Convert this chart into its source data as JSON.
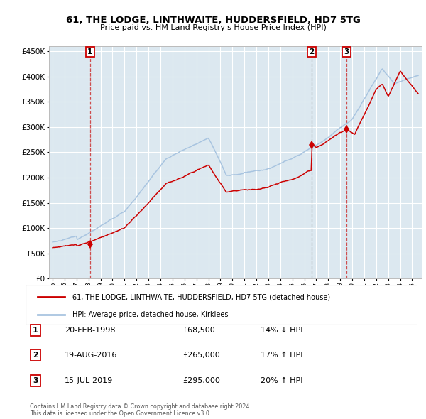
{
  "title": "61, THE LODGE, LINTHWAITE, HUDDERSFIELD, HD7 5TG",
  "subtitle": "Price paid vs. HM Land Registry's House Price Index (HPI)",
  "legend_label_red": "61, THE LODGE, LINTHWAITE, HUDDERSFIELD, HD7 5TG (detached house)",
  "legend_label_blue": "HPI: Average price, detached house, Kirklees",
  "footnote": "Contains HM Land Registry data © Crown copyright and database right 2024.\nThis data is licensed under the Open Government Licence v3.0.",
  "table": [
    {
      "num": "1",
      "date": "20-FEB-1998",
      "price": "£68,500",
      "hpi": "14% ↓ HPI"
    },
    {
      "num": "2",
      "date": "19-AUG-2016",
      "price": "£265,000",
      "hpi": "17% ↑ HPI"
    },
    {
      "num": "3",
      "date": "15-JUL-2019",
      "price": "£295,000",
      "hpi": "20% ↑ HPI"
    }
  ],
  "sale_years": [
    1998.13,
    2016.63,
    2019.54
  ],
  "sale_prices": [
    68500,
    265000,
    295000
  ],
  "sale_labels": [
    "1",
    "2",
    "3"
  ],
  "ylim": [
    0,
    460000
  ],
  "xlim_start": 1994.7,
  "xlim_end": 2025.8,
  "background_color": "#dce8f0",
  "grid_color": "#ffffff",
  "red_color": "#cc0000",
  "blue_color": "#a8c4e0",
  "dashed_red": "#cc3333",
  "dashed_grey": "#999999"
}
